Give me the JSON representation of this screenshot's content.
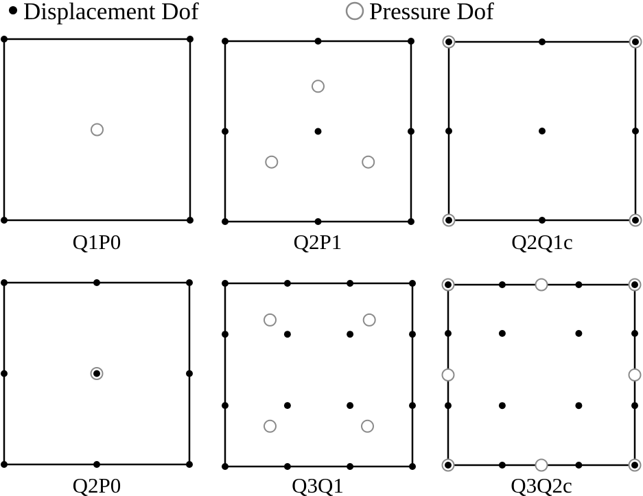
{
  "legend": {
    "displacement_label": "Displacement Dof",
    "pressure_label": "Pressure Dof"
  },
  "colors": {
    "displacement": "#000000",
    "pressure": "#8a8a8a",
    "frame": "#000000",
    "background": "#ffffff"
  },
  "elements": [
    {
      "name": "Q1P0",
      "displacement": [
        [
          0,
          0
        ],
        [
          1,
          0
        ],
        [
          0,
          1
        ],
        [
          1,
          1
        ]
      ],
      "pressure": [
        [
          0.5,
          0.5
        ]
      ]
    },
    {
      "name": "Q2P1",
      "displacement": [
        [
          0,
          0
        ],
        [
          0.5,
          0
        ],
        [
          1,
          0
        ],
        [
          0,
          0.5
        ],
        [
          0.5,
          0.5
        ],
        [
          1,
          0.5
        ],
        [
          0,
          1
        ],
        [
          0.5,
          1
        ],
        [
          1,
          1
        ]
      ],
      "pressure": [
        [
          0.5,
          0.25
        ],
        [
          0.25,
          0.67
        ],
        [
          0.77,
          0.67
        ]
      ]
    },
    {
      "name": "Q2Q1c",
      "displacement": [
        [
          0,
          0
        ],
        [
          0.5,
          0
        ],
        [
          1,
          0
        ],
        [
          0,
          0.5
        ],
        [
          0.5,
          0.5
        ],
        [
          1,
          0.5
        ],
        [
          0,
          1
        ],
        [
          0.5,
          1
        ],
        [
          1,
          1
        ]
      ],
      "pressure": [
        [
          0,
          0
        ],
        [
          1,
          0
        ],
        [
          0,
          1
        ],
        [
          1,
          1
        ]
      ]
    },
    {
      "name": "Q2P0",
      "displacement": [
        [
          0,
          0
        ],
        [
          0.5,
          0
        ],
        [
          1,
          0
        ],
        [
          0,
          0.5
        ],
        [
          0.5,
          0.5
        ],
        [
          1,
          0.5
        ],
        [
          0,
          1
        ],
        [
          0.5,
          1
        ],
        [
          1,
          1
        ]
      ],
      "pressure": [
        [
          0.5,
          0.5
        ]
      ]
    },
    {
      "name": "Q3Q1",
      "displacement": [
        [
          0,
          0
        ],
        [
          0.333,
          0
        ],
        [
          0.667,
          0
        ],
        [
          1,
          0
        ],
        [
          0,
          0.278
        ],
        [
          0.333,
          0.278
        ],
        [
          0.667,
          0.278
        ],
        [
          1,
          0.278
        ],
        [
          0,
          0.667
        ],
        [
          0.333,
          0.667
        ],
        [
          0.667,
          0.667
        ],
        [
          1,
          0.667
        ],
        [
          0,
          1
        ],
        [
          0.333,
          1
        ],
        [
          0.667,
          1
        ],
        [
          1,
          1
        ]
      ],
      "pressure": [
        [
          0.24,
          0.2
        ],
        [
          0.77,
          0.2
        ],
        [
          0.24,
          0.78
        ],
        [
          0.76,
          0.78
        ]
      ]
    },
    {
      "name": "Q3Q2c",
      "displacement": [
        [
          0,
          0
        ],
        [
          0.29,
          0
        ],
        [
          0.7,
          0
        ],
        [
          1,
          0
        ],
        [
          0,
          0.27
        ],
        [
          0.29,
          0.27
        ],
        [
          0.7,
          0.27
        ],
        [
          1,
          0.27
        ],
        [
          0,
          0.67
        ],
        [
          0.29,
          0.67
        ],
        [
          0.7,
          0.67
        ],
        [
          1,
          0.67
        ],
        [
          0,
          1
        ],
        [
          0.29,
          1
        ],
        [
          0.7,
          1
        ],
        [
          1,
          1
        ]
      ],
      "pressure": [
        [
          0,
          0
        ],
        [
          0.5,
          0
        ],
        [
          1,
          0
        ],
        [
          0,
          0.5
        ],
        [
          1,
          0.5
        ],
        [
          0,
          1
        ],
        [
          0.5,
          1
        ],
        [
          1,
          1
        ]
      ]
    }
  ]
}
